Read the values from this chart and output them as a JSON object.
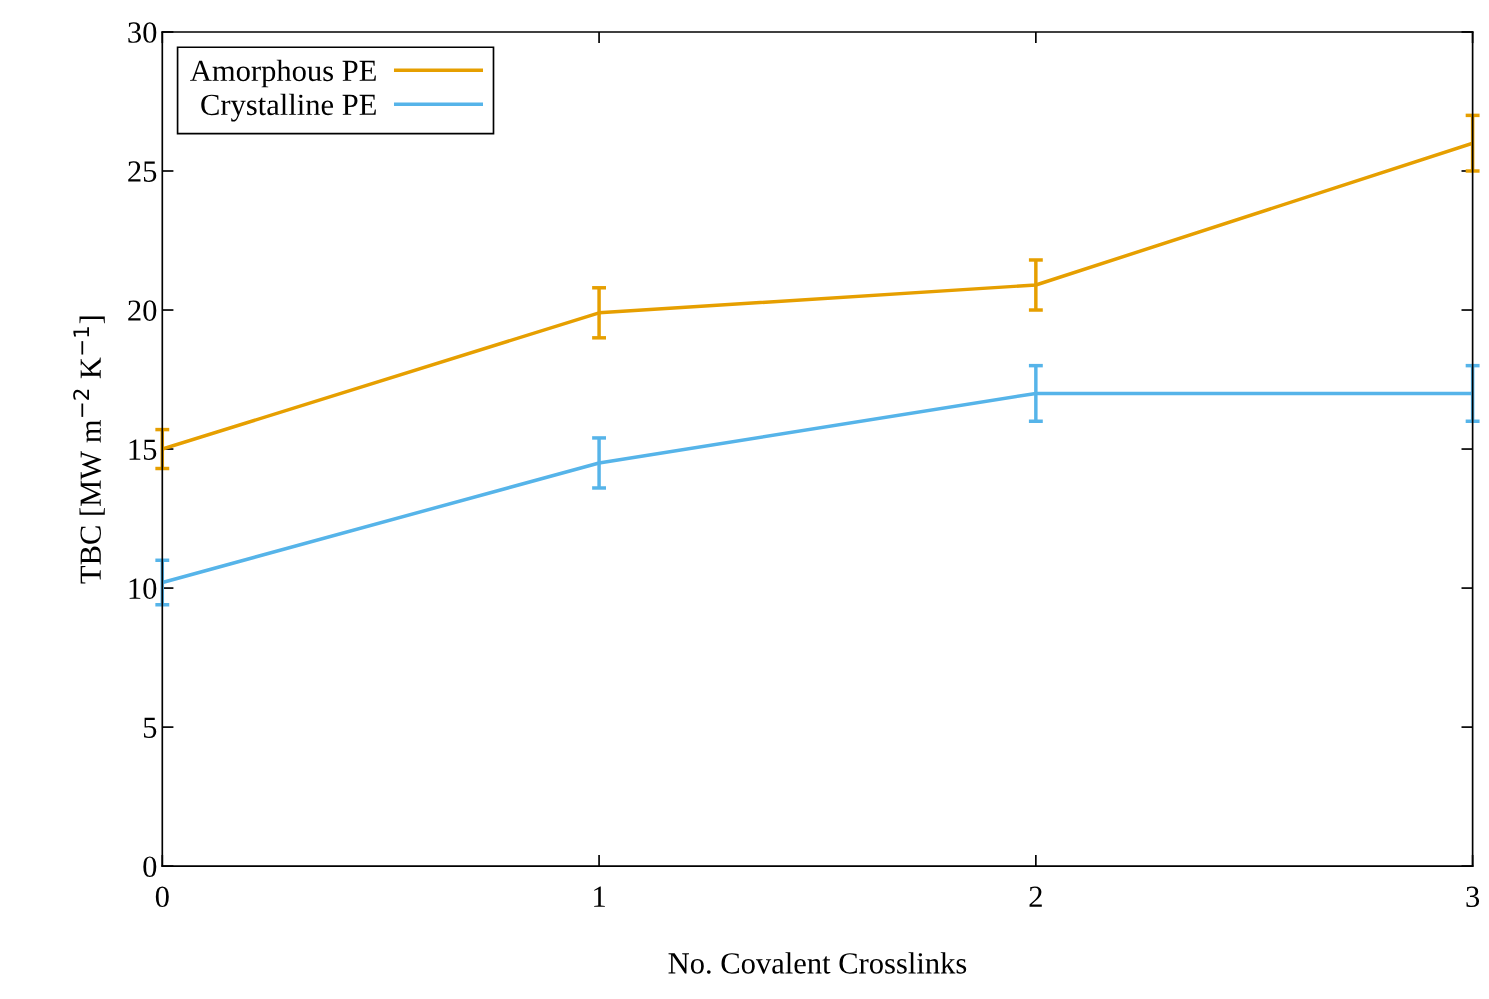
{
  "chart_data": {
    "type": "line",
    "xlabel": "No. Covalent Crosslinks",
    "ylabel": "TBC [MW m$^{−2}$ K$^{−1}$]",
    "x": [
      0,
      1,
      2,
      3
    ],
    "xlim": [
      0,
      3
    ],
    "xticks": [
      0,
      1,
      2,
      3
    ],
    "ylim": [
      0,
      30
    ],
    "yticks": [
      0,
      5,
      10,
      15,
      20,
      25,
      30
    ],
    "series": [
      {
        "name": "Amorphous PE",
        "color": "#e69f00",
        "values": [
          15.0,
          19.9,
          20.9,
          26.0
        ],
        "errors": [
          0.7,
          0.9,
          0.9,
          1.0
        ]
      },
      {
        "name": "Crystalline PE",
        "color": "#56b4e9",
        "values": [
          10.2,
          14.5,
          17.0,
          17.0
        ],
        "errors": [
          0.8,
          0.9,
          1.0,
          1.0
        ]
      }
    ],
    "legend": "top left",
    "grid": false,
    "marker": "none",
    "line_style": "solid"
  }
}
